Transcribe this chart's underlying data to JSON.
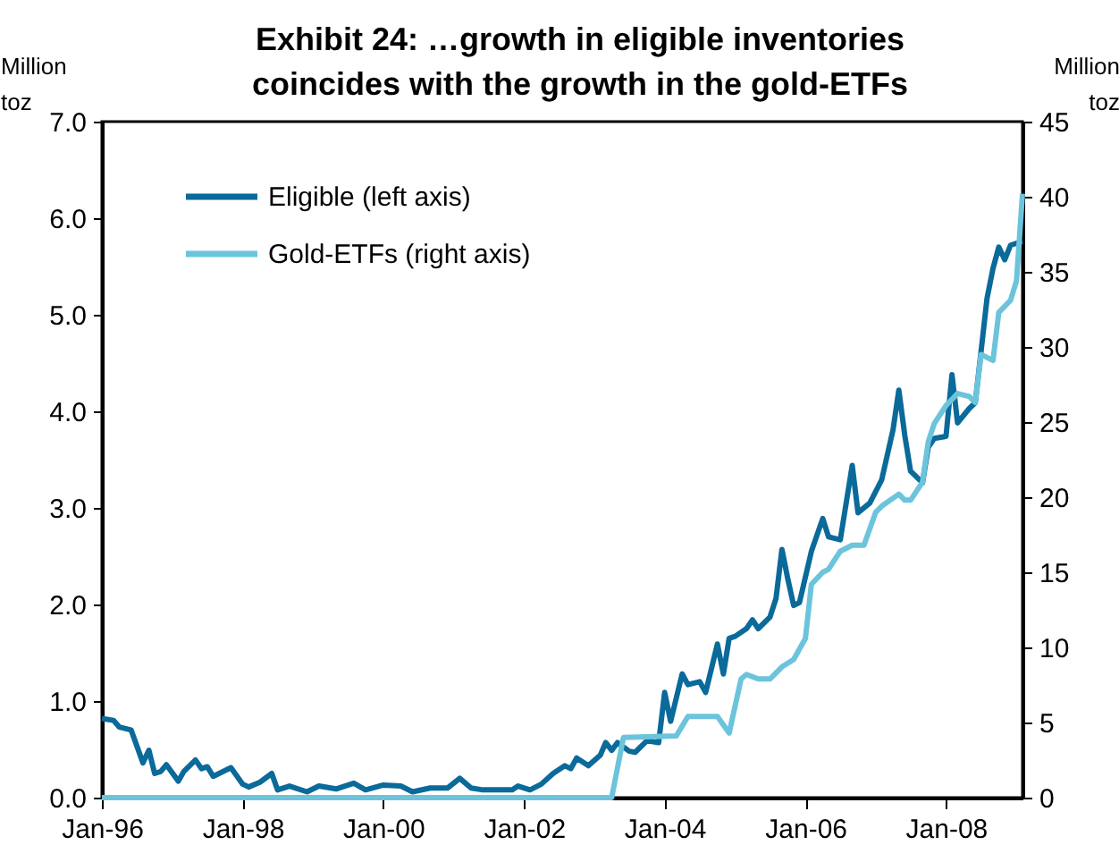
{
  "chart_data": {
    "type": "line",
    "title": "Exhibit 24: …growth in eligible inventories\ncoincides with the growth in the gold-ETFs",
    "ylabel": "Million\ntoz",
    "y2label": "Million\ntoz",
    "xlim": [
      "1996-01",
      "2009-02"
    ],
    "xticks": [
      {
        "value": "1996-01",
        "label": "Jan-96"
      },
      {
        "value": "1998-01",
        "label": "Jan-98"
      },
      {
        "value": "2000-01",
        "label": "Jan-00"
      },
      {
        "value": "2002-01",
        "label": "Jan-02"
      },
      {
        "value": "2004-01",
        "label": "Jan-04"
      },
      {
        "value": "2006-01",
        "label": "Jan-06"
      },
      {
        "value": "2008-01",
        "label": "Jan-08"
      }
    ],
    "ylim": [
      0,
      7
    ],
    "yticks": [
      {
        "value": 0,
        "label": "0.0"
      },
      {
        "value": 1,
        "label": "1.0"
      },
      {
        "value": 2,
        "label": "2.0"
      },
      {
        "value": 3,
        "label": "3.0"
      },
      {
        "value": 4,
        "label": "4.0"
      },
      {
        "value": 5,
        "label": "5.0"
      },
      {
        "value": 6,
        "label": "6.0"
      },
      {
        "value": 7,
        "label": "7.0"
      }
    ],
    "y2lim": [
      0,
      45
    ],
    "y2ticks": [
      0,
      5,
      10,
      15,
      20,
      25,
      30,
      35,
      40,
      45
    ],
    "grid": false,
    "legend": "top left",
    "marker": "none",
    "line_style": "solid",
    "series": [
      {
        "name": "Eligible (left axis)",
        "color": "#0a6a9a",
        "axis": "y",
        "x": [
          "1996-01",
          "1996-03",
          "1996-04",
          "1996-06",
          "1996-08",
          "1996-09",
          "1996-10",
          "1996-11",
          "1996-12",
          "1997-02",
          "1997-03",
          "1997-05",
          "1997-06",
          "1997-07",
          "1997-08",
          "1997-11",
          "1998-01",
          "1998-02",
          "1998-04",
          "1998-06",
          "1998-07",
          "1998-09",
          "1998-12",
          "1999-02",
          "1999-05",
          "1999-08",
          "1999-10",
          "2000-01",
          "2000-04",
          "2000-06",
          "2000-09",
          "2000-12",
          "2001-02",
          "2001-04",
          "2001-06",
          "2001-11",
          "2001-12",
          "2002-02",
          "2002-04",
          "2002-06",
          "2002-08",
          "2002-09",
          "2002-10",
          "2002-12",
          "2003-02",
          "2003-03",
          "2003-04",
          "2003-05",
          "2003-07",
          "2003-08",
          "2003-10",
          "2003-12",
          "2004-01",
          "2004-02",
          "2004-04",
          "2004-05",
          "2004-07",
          "2004-08",
          "2004-10",
          "2004-11",
          "2004-12",
          "2005-01",
          "2005-03",
          "2005-04",
          "2005-05",
          "2005-07",
          "2005-08",
          "2005-09",
          "2005-10",
          "2005-11",
          "2005-12",
          "2006-02",
          "2006-04",
          "2006-05",
          "2006-07",
          "2006-09",
          "2006-10",
          "2006-12",
          "2007-02",
          "2007-04",
          "2007-05",
          "2007-06",
          "2007-07",
          "2007-08",
          "2007-09",
          "2007-10",
          "2007-11",
          "2008-01",
          "2008-02",
          "2008-03",
          "2008-05",
          "2008-06",
          "2008-08",
          "2008-09",
          "2008-10",
          "2008-11",
          "2008-12",
          "2009-02"
        ],
        "values": [
          0.82,
          0.8,
          0.73,
          0.7,
          0.36,
          0.49,
          0.25,
          0.27,
          0.34,
          0.17,
          0.27,
          0.39,
          0.3,
          0.32,
          0.22,
          0.31,
          0.14,
          0.11,
          0.16,
          0.25,
          0.08,
          0.12,
          0.06,
          0.12,
          0.09,
          0.15,
          0.08,
          0.13,
          0.12,
          0.06,
          0.1,
          0.1,
          0.2,
          0.1,
          0.08,
          0.08,
          0.12,
          0.08,
          0.14,
          0.25,
          0.33,
          0.3,
          0.41,
          0.33,
          0.44,
          0.57,
          0.49,
          0.57,
          0.48,
          0.47,
          0.59,
          0.57,
          1.09,
          0.79,
          1.28,
          1.17,
          1.2,
          1.09,
          1.59,
          1.28,
          1.65,
          1.67,
          1.75,
          1.84,
          1.75,
          1.87,
          2.06,
          2.57,
          2.27,
          1.99,
          2.02,
          2.55,
          2.89,
          2.7,
          2.67,
          3.44,
          2.95,
          3.05,
          3.29,
          3.81,
          4.22,
          3.75,
          3.38,
          3.32,
          3.26,
          3.63,
          3.72,
          3.74,
          4.38,
          3.88,
          4.03,
          4.09,
          5.17,
          5.48,
          5.7,
          5.57,
          5.72,
          5.76
        ]
      },
      {
        "name": "Gold-ETFs (right axis)",
        "color": "#6cc4dc",
        "axis": "y2",
        "x": [
          "1996-01",
          "2003-04",
          "2003-06",
          "2004-03",
          "2004-05",
          "2004-10",
          "2004-12",
          "2005-02",
          "2005-03",
          "2005-05",
          "2005-07",
          "2005-09",
          "2005-11",
          "2006-01",
          "2006-02",
          "2006-04",
          "2006-05",
          "2006-07",
          "2006-09",
          "2006-11",
          "2007-01",
          "2007-02",
          "2007-05",
          "2007-06",
          "2007-07",
          "2007-09",
          "2007-10",
          "2007-11",
          "2008-01",
          "2008-03",
          "2008-05",
          "2008-06",
          "2008-07",
          "2008-09",
          "2008-10",
          "2008-12",
          "2009-01",
          "2009-02"
        ],
        "values": [
          0,
          0,
          4.0,
          4.1,
          5.4,
          5.4,
          4.3,
          7.9,
          8.2,
          7.9,
          7.9,
          8.7,
          9.2,
          10.6,
          14.2,
          15.0,
          15.2,
          16.4,
          16.8,
          16.8,
          19.0,
          19.4,
          20.2,
          19.8,
          19.8,
          21.0,
          23.7,
          24.9,
          26.1,
          26.9,
          26.7,
          26.3,
          29.5,
          29.1,
          32.3,
          33.1,
          34.4,
          40.2
        ]
      }
    ]
  }
}
